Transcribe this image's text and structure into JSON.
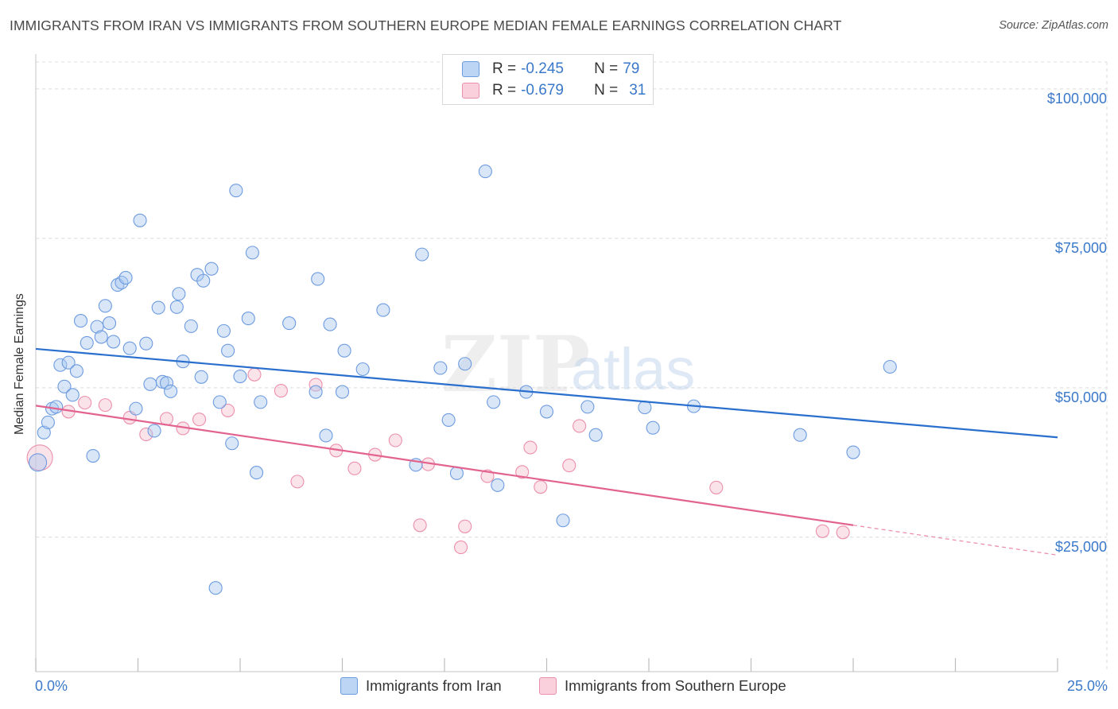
{
  "header": {
    "title": "IMMIGRANTS FROM IRAN VS IMMIGRANTS FROM SOUTHERN EUROPE MEDIAN FEMALE EARNINGS CORRELATION CHART",
    "source": "Source: ZipAtlas.com"
  },
  "colors": {
    "iran_fill": "#a9c8f0",
    "iran_stroke": "#6d9be0",
    "iran_line": "#2a6fcd",
    "europe_fill": "#f7c0d0",
    "europe_stroke": "#ec8fac",
    "europe_line": "#e2638f",
    "axis_value": "#3a78c9",
    "grid": "#dcdcdc"
  },
  "legend": {
    "iran": {
      "r_label": "R = ",
      "r_value": "-0.245",
      "n_label": "N = ",
      "n_value": "79"
    },
    "europe": {
      "r_label": "R = ",
      "r_value": "-0.679",
      "n_label": "N = ",
      "n_value": "31"
    }
  },
  "bottom_legend": {
    "iran_label": "Immigrants from Iran",
    "europe_label": "Immigrants from Southern Europe"
  },
  "watermark": {
    "zip": "ZIP",
    "atlas": "atlas"
  },
  "chart_data": {
    "type": "scatter",
    "title": "IMMIGRANTS FROM IRAN VS IMMIGRANTS FROM SOUTHERN EUROPE MEDIAN FEMALE EARNINGS CORRELATION CHART",
    "xlabel": "",
    "ylabel": "Median Female Earnings",
    "xlim": [
      0,
      25
    ],
    "ylim": [
      2500,
      104500
    ],
    "x_tick_labels": [
      "0.0%",
      "25.0%"
    ],
    "y_ticks": [
      25000,
      50000,
      75000,
      100000
    ],
    "y_tick_labels": [
      "$25,000",
      "$50,000",
      "$75,000",
      "$100,000"
    ],
    "grid": true,
    "series": [
      {
        "name": "Immigrants from Iran",
        "r": -0.245,
        "n": 79,
        "trend": {
          "x0": 0,
          "y0": 56500,
          "x1": 25,
          "y1": 41700,
          "dashed_from": null
        },
        "points": [
          [
            0.05,
            37500
          ],
          [
            0.2,
            42500
          ],
          [
            0.3,
            44200
          ],
          [
            0.4,
            46500
          ],
          [
            0.5,
            46800
          ],
          [
            0.6,
            53800
          ],
          [
            0.7,
            50200
          ],
          [
            0.8,
            54200
          ],
          [
            0.9,
            48800
          ],
          [
            1.0,
            52800
          ],
          [
            1.1,
            61200
          ],
          [
            1.25,
            57500
          ],
          [
            1.4,
            38600
          ],
          [
            1.5,
            60200
          ],
          [
            1.6,
            58500
          ],
          [
            1.7,
            63700
          ],
          [
            1.8,
            60800
          ],
          [
            1.9,
            57700
          ],
          [
            2.0,
            67200
          ],
          [
            2.1,
            67600
          ],
          [
            2.2,
            68400
          ],
          [
            2.3,
            56600
          ],
          [
            2.45,
            46500
          ],
          [
            2.55,
            78000
          ],
          [
            2.7,
            57400
          ],
          [
            2.8,
            50600
          ],
          [
            2.9,
            42800
          ],
          [
            3.0,
            63400
          ],
          [
            3.1,
            51000
          ],
          [
            3.2,
            50800
          ],
          [
            3.3,
            49400
          ],
          [
            3.45,
            63500
          ],
          [
            3.5,
            65700
          ],
          [
            3.6,
            54400
          ],
          [
            3.8,
            60300
          ],
          [
            4.05,
            51800
          ],
          [
            3.95,
            68900
          ],
          [
            4.1,
            67900
          ],
          [
            4.3,
            69900
          ],
          [
            4.4,
            16500
          ],
          [
            4.5,
            47600
          ],
          [
            4.6,
            59500
          ],
          [
            4.7,
            56200
          ],
          [
            4.8,
            40700
          ],
          [
            4.9,
            83000
          ],
          [
            5.0,
            51900
          ],
          [
            5.2,
            61600
          ],
          [
            5.3,
            72600
          ],
          [
            5.4,
            35800
          ],
          [
            5.5,
            47600
          ],
          [
            6.2,
            60800
          ],
          [
            6.85,
            49300
          ],
          [
            6.9,
            68200
          ],
          [
            7.1,
            42000
          ],
          [
            7.2,
            60600
          ],
          [
            7.5,
            49300
          ],
          [
            7.55,
            56200
          ],
          [
            8.0,
            53100
          ],
          [
            8.5,
            63000
          ],
          [
            9.3,
            37100
          ],
          [
            9.45,
            72300
          ],
          [
            9.9,
            53300
          ],
          [
            10.1,
            44600
          ],
          [
            10.3,
            35700
          ],
          [
            10.5,
            54000
          ],
          [
            11.0,
            86200
          ],
          [
            11.2,
            47600
          ],
          [
            11.3,
            33700
          ],
          [
            12.0,
            49300
          ],
          [
            12.5,
            46000
          ],
          [
            12.9,
            27800
          ],
          [
            13.5,
            46800
          ],
          [
            13.7,
            42100
          ],
          [
            14.9,
            46700
          ],
          [
            15.1,
            43300
          ],
          [
            16.1,
            46900
          ],
          [
            18.7,
            42100
          ],
          [
            20.0,
            39200
          ],
          [
            20.9,
            53500
          ]
        ]
      },
      {
        "name": "Immigrants from Southern Europe",
        "r": -0.679,
        "n": 31,
        "trend": {
          "x0": 0,
          "y0": 47000,
          "x1": 25,
          "y1": 22000,
          "dashed_from": 20
        },
        "points": [
          [
            0.1,
            38300
          ],
          [
            0.8,
            46000
          ],
          [
            1.2,
            47500
          ],
          [
            1.7,
            47100
          ],
          [
            2.3,
            45000
          ],
          [
            2.7,
            42200
          ],
          [
            3.2,
            44800
          ],
          [
            3.6,
            43200
          ],
          [
            4.0,
            44700
          ],
          [
            4.7,
            46200
          ],
          [
            5.35,
            52200
          ],
          [
            6.0,
            49500
          ],
          [
            6.4,
            34300
          ],
          [
            6.85,
            50500
          ],
          [
            7.35,
            39500
          ],
          [
            7.8,
            36500
          ],
          [
            8.3,
            38800
          ],
          [
            8.8,
            41200
          ],
          [
            9.4,
            27000
          ],
          [
            9.6,
            37200
          ],
          [
            10.4,
            23300
          ],
          [
            10.5,
            26800
          ],
          [
            11.05,
            35200
          ],
          [
            11.9,
            35900
          ],
          [
            12.1,
            40000
          ],
          [
            12.35,
            33400
          ],
          [
            13.05,
            37000
          ],
          [
            13.3,
            43600
          ],
          [
            16.65,
            33300
          ],
          [
            19.25,
            26000
          ],
          [
            19.75,
            25800
          ]
        ]
      }
    ]
  }
}
